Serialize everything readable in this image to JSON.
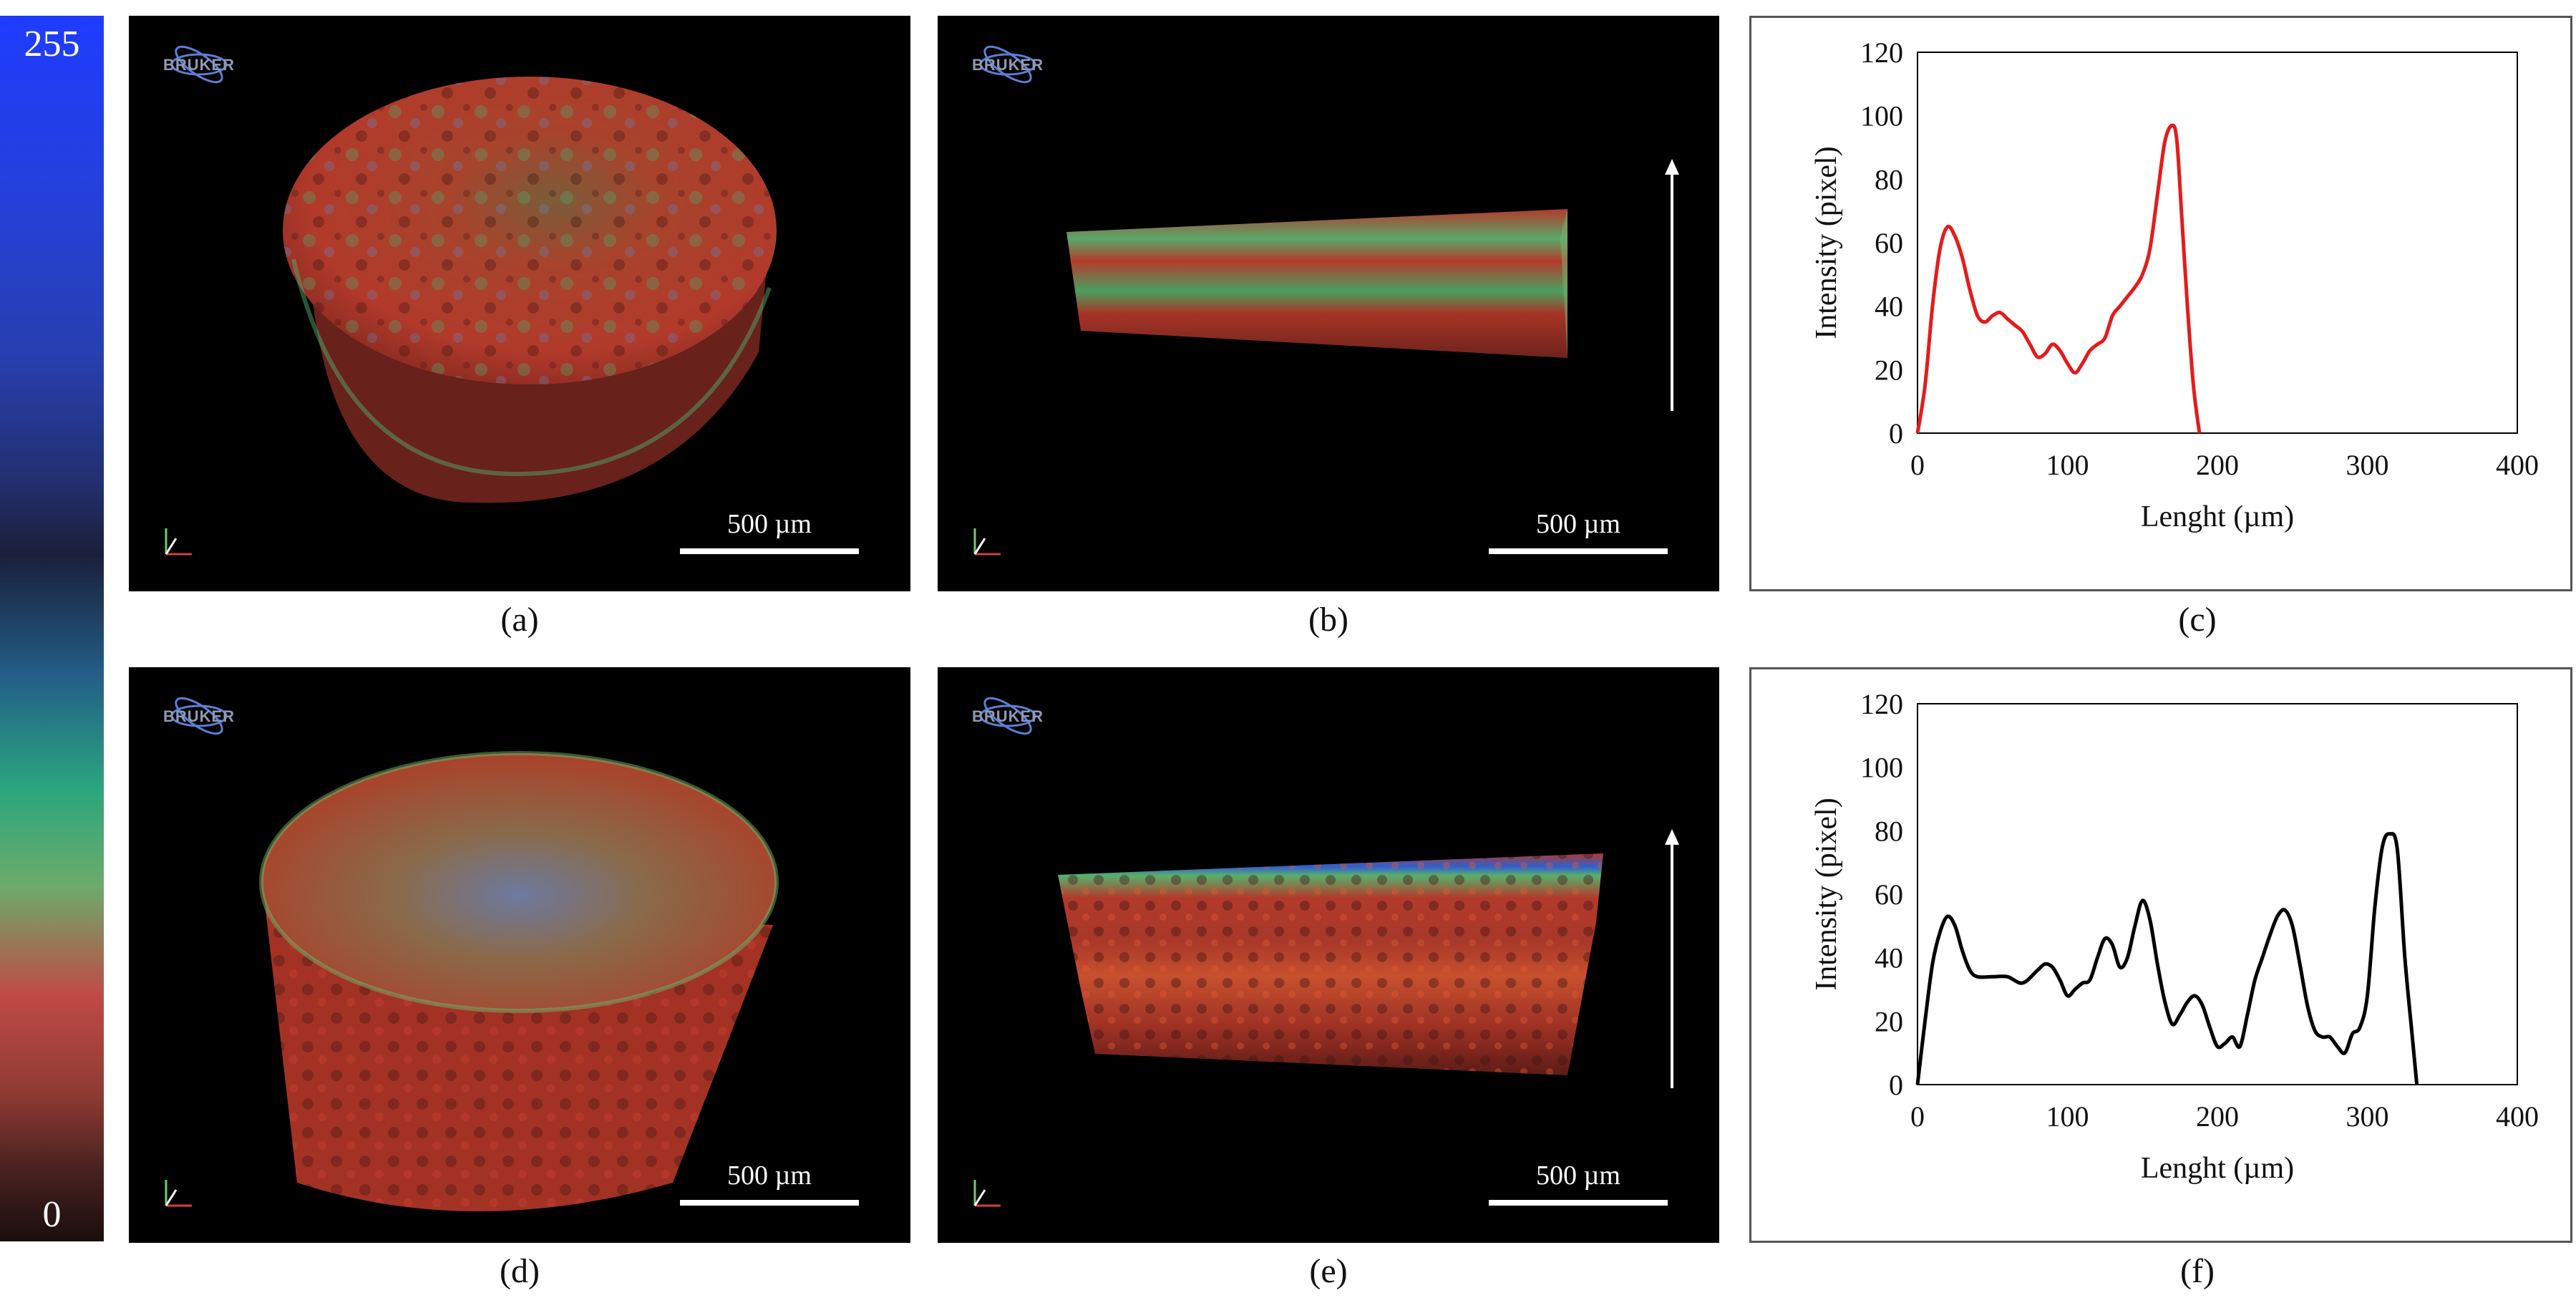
{
  "colorbar": {
    "max_label": "255",
    "min_label": "0"
  },
  "panels": {
    "a": {
      "caption": "(a)",
      "logo": "BRUKER",
      "scale": "500 µm"
    },
    "b": {
      "caption": "(b)",
      "logo": "BRUKER",
      "scale": "500 µm"
    },
    "d": {
      "caption": "(d)",
      "logo": "BRUKER",
      "scale": "500 µm"
    },
    "e": {
      "caption": "(e)",
      "logo": "BRUKER",
      "scale": "500 µm"
    }
  },
  "captions": {
    "c": "(c)",
    "f": "(f)"
  },
  "colors": {
    "series_c": "#e51b1b",
    "series_f": "#000000",
    "red_tissue": "#c0302a",
    "green_tissue": "#3fbf6a"
  },
  "chart_data": [
    {
      "type": "line",
      "xlabel": "Lenght (µm)",
      "ylabel": "Intensity (pixel)",
      "xlim": [
        0,
        400
      ],
      "ylim": [
        0,
        120
      ],
      "xticks": [
        0,
        100,
        200,
        300,
        400
      ],
      "yticks": [
        0,
        20,
        40,
        60,
        80,
        100,
        120
      ],
      "grid": false,
      "series": [
        {
          "color": "#e51b1b",
          "x": [
            0,
            5,
            10,
            15,
            20,
            25,
            30,
            35,
            40,
            45,
            50,
            55,
            60,
            65,
            70,
            75,
            80,
            85,
            90,
            95,
            100,
            105,
            110,
            115,
            120,
            125,
            130,
            135,
            140,
            145,
            150,
            155,
            160,
            165,
            170,
            173,
            176,
            180,
            184,
            188
          ],
          "y": [
            0,
            15,
            40,
            58,
            65,
            62,
            55,
            45,
            37,
            35,
            37,
            38,
            36,
            34,
            32,
            28,
            24,
            25,
            28,
            26,
            22,
            19,
            22,
            26,
            28,
            30,
            37,
            40,
            43,
            46,
            50,
            58,
            75,
            92,
            97,
            92,
            70,
            40,
            15,
            0
          ]
        }
      ]
    },
    {
      "type": "line",
      "xlabel": "Lenght (µm)",
      "ylabel": "Intensity (pixel)",
      "xlim": [
        0,
        400
      ],
      "ylim": [
        0,
        120
      ],
      "xticks": [
        0,
        100,
        200,
        300,
        400
      ],
      "yticks": [
        0,
        20,
        40,
        60,
        80,
        100,
        120
      ],
      "grid": false,
      "series": [
        {
          "color": "#000000",
          "x": [
            0,
            5,
            10,
            15,
            20,
            25,
            30,
            35,
            40,
            50,
            60,
            70,
            80,
            85,
            90,
            95,
            100,
            105,
            110,
            115,
            120,
            125,
            130,
            135,
            140,
            145,
            150,
            155,
            160,
            165,
            170,
            175,
            180,
            185,
            190,
            195,
            200,
            205,
            210,
            215,
            220,
            225,
            230,
            235,
            240,
            245,
            250,
            255,
            260,
            265,
            270,
            275,
            280,
            285,
            290,
            295,
            300,
            305,
            310,
            315,
            320,
            325,
            330,
            333
          ],
          "y": [
            0,
            20,
            38,
            48,
            53,
            50,
            42,
            36,
            34,
            34,
            34,
            32,
            36,
            38,
            37,
            33,
            28,
            30,
            32,
            33,
            40,
            46,
            44,
            37,
            40,
            50,
            58,
            52,
            38,
            26,
            19,
            22,
            26,
            28,
            25,
            18,
            12,
            13,
            15,
            12,
            22,
            33,
            40,
            47,
            53,
            55,
            50,
            38,
            25,
            17,
            15,
            15,
            12,
            10,
            16,
            18,
            28,
            56,
            75,
            79,
            74,
            40,
            15,
            0
          ]
        }
      ]
    }
  ]
}
